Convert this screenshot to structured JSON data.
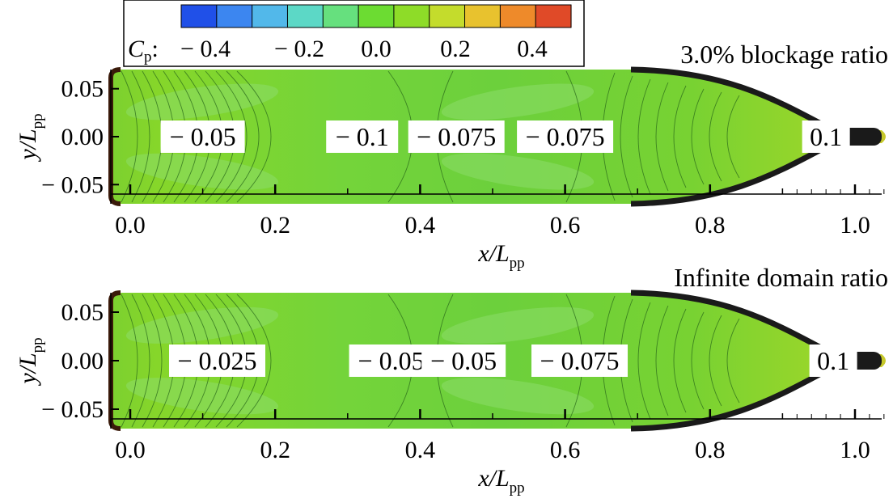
{
  "colorbar": {
    "variable": "C",
    "variable_sub": "p",
    "ticks": [
      "− 0.4",
      "− 0.2",
      "0.0",
      "0.2",
      "0.4"
    ],
    "range": [
      -0.5,
      0.5
    ],
    "colors": [
      "#2050e8",
      "#3c86f0",
      "#52b8ea",
      "#5cd8c6",
      "#66e07e",
      "#6cdc32",
      "#8edc28",
      "#c4dc2c",
      "#e8c22e",
      "#ee8a2a",
      "#e04a28"
    ]
  },
  "chart_data": [
    {
      "type": "heatmap",
      "title": "3.0% blockage ratio",
      "xlabel": "x/L",
      "xlabel_sub": "pp",
      "ylabel": "y/L",
      "ylabel_sub": "pp",
      "xlim": [
        -0.02,
        1.05
      ],
      "ylim": [
        -0.07,
        0.07
      ],
      "xticks": [
        0.0,
        0.2,
        0.4,
        0.6,
        0.8,
        1.0
      ],
      "xtick_labels": [
        "0.0",
        "0.2",
        "0.4",
        "0.6",
        "0.8",
        "1.0"
      ],
      "yticks": [
        0.05,
        0.0,
        -0.05
      ],
      "ytick_labels": [
        "0.05",
        "0.00",
        "− 0.05"
      ],
      "annotations": [
        {
          "x": 0.1,
          "y": 0.0,
          "text": "− 0.05"
        },
        {
          "x": 0.32,
          "y": 0.0,
          "text": "− 0.1"
        },
        {
          "x": 0.45,
          "y": 0.0,
          "text": "− 0.075"
        },
        {
          "x": 0.6,
          "y": 0.0,
          "text": "− 0.075"
        },
        {
          "x": 0.96,
          "y": 0.0,
          "text": "0.1"
        }
      ]
    },
    {
      "type": "heatmap",
      "title": "Infinite domain ratio",
      "xlabel": "x/L",
      "xlabel_sub": "pp",
      "ylabel": "y/L",
      "ylabel_sub": "pp",
      "xlim": [
        -0.02,
        1.05
      ],
      "ylim": [
        -0.07,
        0.07
      ],
      "xticks": [
        0.0,
        0.2,
        0.4,
        0.6,
        0.8,
        1.0
      ],
      "xtick_labels": [
        "0.0",
        "0.2",
        "0.4",
        "0.6",
        "0.8",
        "1.0"
      ],
      "yticks": [
        0.05,
        0.0,
        -0.05
      ],
      "ytick_labels": [
        "0.05",
        "0.00",
        "− 0.05"
      ],
      "annotations": [
        {
          "x": 0.12,
          "y": 0.0,
          "text": "− 0.025"
        },
        {
          "x": 0.36,
          "y": 0.0,
          "text": "− 0.05"
        },
        {
          "x": 0.46,
          "y": 0.0,
          "text": "− 0.05"
        },
        {
          "x": 0.62,
          "y": 0.0,
          "text": "− 0.075"
        },
        {
          "x": 0.97,
          "y": 0.0,
          "text": "0.1"
        }
      ]
    }
  ]
}
